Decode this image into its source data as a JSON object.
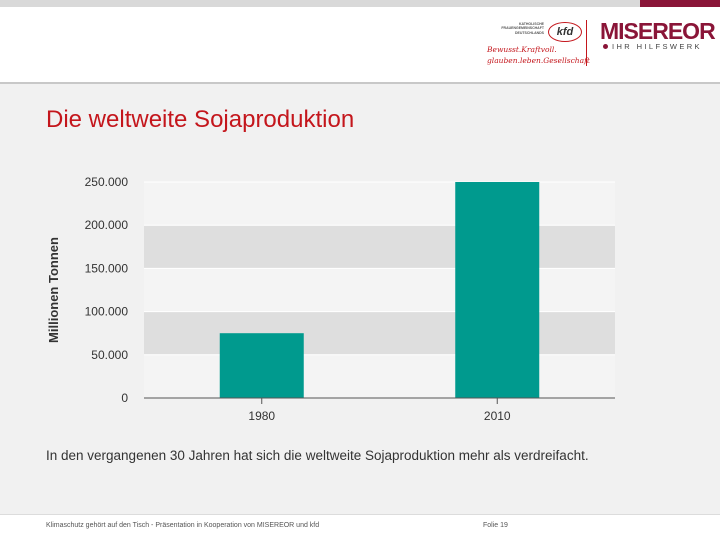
{
  "title": "Die weltweite Sojaproduktion",
  "caption": "In den vergangenen 30 Jahren hat sich die weltweite Sojaproduktion mehr als verdreifacht.",
  "footer": {
    "left": "Klimaschutz gehört auf den Tisch - Präsentation in Kooperation von MISEREOR und kfd",
    "right": "Folie 19"
  },
  "logos": {
    "kfd_org": "KATHOLISCHE FRAUENGEMEINSCHAFT DEUTSCHLANDS",
    "kfd_mark": "kfd",
    "kfd_slogan_line1": "Bewusst.Kraftvoll.",
    "kfd_slogan_line2": "glauben.leben.Gesellschaft",
    "misereor_name": "MISEREOR",
    "misereor_tagline": "IHR HILFSWERK"
  },
  "colors": {
    "title": "#c4161c",
    "bar": "#009a8e",
    "brand": "#8a1538"
  },
  "chart_data": {
    "type": "bar",
    "categories": [
      "1980",
      "2010"
    ],
    "values": [
      75000,
      250000
    ],
    "ylabel": "Millionen Tonnen",
    "xlabel": "",
    "ylim": [
      0,
      250000
    ],
    "yticks": [
      "0",
      "50.000",
      "100.000",
      "150.000",
      "200.000",
      "250.000"
    ],
    "grid": true
  }
}
